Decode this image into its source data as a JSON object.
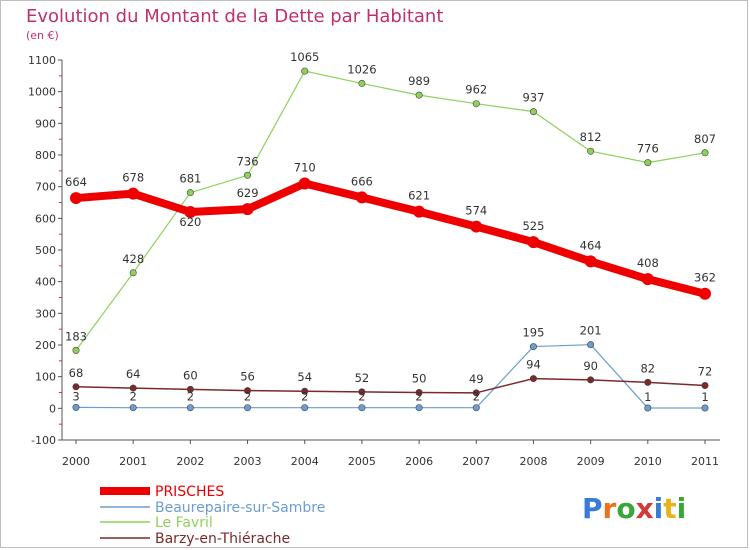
{
  "chart_data": {
    "type": "line",
    "title": "Evolution du Montant de la Dette par Habitant",
    "subtitle": "(en €)",
    "x": [
      "2000",
      "2001",
      "2002",
      "2003",
      "2004",
      "2005",
      "2006",
      "2007",
      "2008",
      "2009",
      "2010",
      "2011"
    ],
    "ylim": [
      -100,
      1100
    ],
    "yticks": [
      -100,
      0,
      100,
      200,
      300,
      400,
      500,
      600,
      700,
      800,
      900,
      1000,
      1100
    ],
    "grid": false,
    "legend_position": "bottom-left",
    "series": [
      {
        "name": "PRISCHES",
        "color": "#ee0000",
        "values": [
          664,
          678,
          620,
          629,
          710,
          666,
          621,
          574,
          525,
          464,
          408,
          362
        ]
      },
      {
        "name": "Beaurepaire-sur-Sambre",
        "color": "#6b9dd0",
        "values": [
          3,
          2,
          2,
          2,
          2,
          2,
          2,
          2,
          195,
          201,
          1,
          1
        ]
      },
      {
        "name": "Le Favril",
        "color": "#8dd15a",
        "values": [
          183,
          428,
          681,
          736,
          1065,
          1026,
          989,
          962,
          937,
          812,
          776,
          807
        ]
      },
      {
        "name": "Barzy-en-Thiérache",
        "color": "#7a2a2a",
        "values": [
          68,
          64,
          60,
          56,
          54,
          52,
          50,
          49,
          94,
          90,
          82,
          72
        ]
      }
    ]
  },
  "logo": {
    "text": "Proxiti",
    "letters": [
      "P",
      "r",
      "o",
      "x",
      "i",
      "t",
      "i"
    ],
    "colors": [
      "#3a7bd5",
      "#e8731a",
      "#3aa63a",
      "#d13a3a",
      "#3a7bd5",
      "#e8b31a",
      "#3aa63a"
    ]
  }
}
